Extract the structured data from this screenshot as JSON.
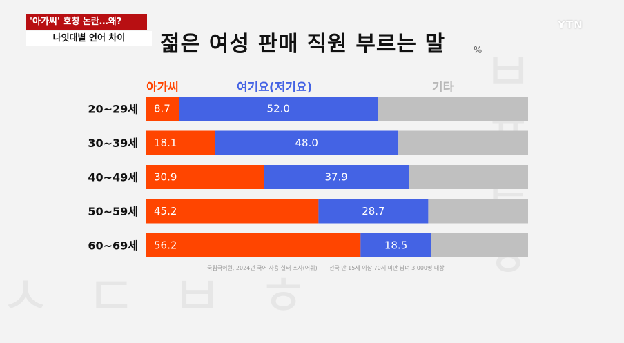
{
  "header": {
    "topic": "'아가씨' 호칭 논란…왜?",
    "subtopic": "나잇대별 언어 차이",
    "logo": "YTN"
  },
  "chart_title": "젊은 여성 판매 직원 부르는 말",
  "unit": "%",
  "source": {
    "left": "국립국어원, 2024년 국어 사용 실태 조사(어휘)",
    "right": "전국 만 15세 이상 70세 미만 남녀 3,000명 대상"
  },
  "colors": {
    "agassi": "#ff4500",
    "yeogiyo": "#4463e4",
    "gita": "#c0c0c0",
    "bar_text": "#ffffff"
  },
  "chart_data": {
    "type": "bar",
    "stacked": true,
    "orientation": "horizontal",
    "title": "젊은 여성 판매 직원 부르는 말",
    "unit": "%",
    "categories": [
      "20~29세",
      "30~39세",
      "40~49세",
      "50~59세",
      "60~69세"
    ],
    "series": [
      {
        "name": "아가씨",
        "values": [
          8.7,
          18.1,
          30.9,
          45.2,
          56.2
        ]
      },
      {
        "name": "여기요(저기요)",
        "values": [
          52.0,
          48.0,
          37.9,
          28.7,
          18.5
        ]
      },
      {
        "name": "기타",
        "values": [
          39.3,
          33.9,
          31.2,
          26.1,
          25.3
        ]
      }
    ],
    "xlim": [
      0,
      100
    ],
    "value_labels_shown_for": [
      "아가씨",
      "여기요(저기요)"
    ],
    "legend_position": "top"
  }
}
